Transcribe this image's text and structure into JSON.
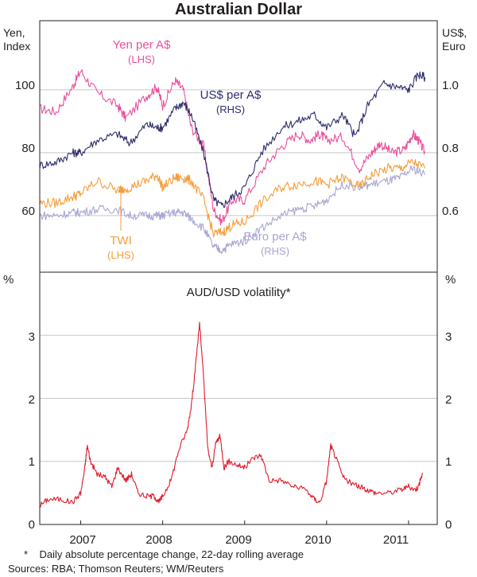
{
  "chart_data": [
    {
      "type": "line",
      "title": "Australian Dollar",
      "panel": "top",
      "x_range": [
        2006.5,
        2011.35
      ],
      "left_axis": {
        "label_line1": "Yen,",
        "label_line2": "Index",
        "ticks": [
          60,
          80,
          100
        ],
        "ylim": [
          42,
          122
        ]
      },
      "right_axis": {
        "label_line1": "US$,",
        "label_line2": "Euro",
        "ticks": [
          0.6,
          0.8,
          1.0
        ],
        "tick_labels": [
          "0.6",
          "0.8",
          "1.0"
        ],
        "ylim": [
          0.42,
          1.22
        ]
      },
      "series": [
        {
          "name": "Yen per A$",
          "axis_label": "(LHS)",
          "axis": "left",
          "color": "#e8509c",
          "x": [
            2006.5,
            2006.7,
            2006.9,
            2007.0,
            2007.2,
            2007.45,
            2007.55,
            2007.8,
            2007.93,
            2008.0,
            2008.15,
            2008.25,
            2008.35,
            2008.5,
            2008.62,
            2008.72,
            2008.85,
            2009.0,
            2009.25,
            2009.45,
            2009.65,
            2009.8,
            2009.92,
            2010.0,
            2010.2,
            2010.4,
            2010.55,
            2010.65,
            2010.8,
            2010.95,
            2011.05,
            2011.12,
            2011.2
          ],
          "values": [
            94,
            93,
            101,
            106,
            99,
            95,
            91,
            98,
            101,
            95,
            103,
            100,
            88,
            82,
            62,
            58,
            65,
            65,
            76,
            82,
            86,
            84,
            86,
            84,
            85,
            75,
            80,
            83,
            80,
            81,
            86,
            84,
            80
          ]
        },
        {
          "name": "US$ per A$",
          "axis_label": "(RHS)",
          "axis": "right",
          "color": "#2e2d6e",
          "x": [
            2006.5,
            2006.7,
            2006.9,
            2007.0,
            2007.2,
            2007.45,
            2007.6,
            2007.8,
            2007.93,
            2008.0,
            2008.15,
            2008.25,
            2008.35,
            2008.5,
            2008.62,
            2008.72,
            2008.85,
            2009.0,
            2009.2,
            2009.45,
            2009.65,
            2009.85,
            2010.0,
            2010.2,
            2010.35,
            2010.5,
            2010.7,
            2010.85,
            2011.0,
            2011.12,
            2011.2
          ],
          "values": [
            0.76,
            0.77,
            0.8,
            0.8,
            0.84,
            0.86,
            0.83,
            0.89,
            0.88,
            0.88,
            0.94,
            0.96,
            0.92,
            0.8,
            0.65,
            0.63,
            0.66,
            0.69,
            0.8,
            0.88,
            0.9,
            0.92,
            0.88,
            0.92,
            0.85,
            0.95,
            1.02,
            1.01,
            1.0,
            1.05,
            1.04
          ]
        },
        {
          "name": "TWI",
          "axis_label": "(LHS)",
          "axis": "left",
          "color": "#f59d3a",
          "x": [
            2006.5,
            2006.7,
            2006.9,
            2007.0,
            2007.2,
            2007.45,
            2007.6,
            2007.8,
            2007.93,
            2008.0,
            2008.15,
            2008.25,
            2008.35,
            2008.5,
            2008.62,
            2008.75,
            2008.85,
            2009.0,
            2009.2,
            2009.45,
            2009.65,
            2009.85,
            2010.0,
            2010.2,
            2010.4,
            2010.55,
            2010.75,
            2010.9,
            2011.05,
            2011.2
          ],
          "values": [
            64,
            64,
            66,
            67,
            71,
            68,
            69,
            71,
            73,
            69,
            72,
            72,
            71,
            65,
            54,
            55,
            57,
            58,
            64,
            69,
            70,
            71,
            70,
            72,
            69,
            73,
            75,
            75,
            77,
            75
          ]
        },
        {
          "name": "Euro per A$",
          "axis_label": "(RHS)",
          "axis": "right",
          "color": "#a8a6d2",
          "x": [
            2006.5,
            2006.7,
            2006.9,
            2007.0,
            2007.2,
            2007.45,
            2007.6,
            2007.8,
            2007.93,
            2008.0,
            2008.15,
            2008.25,
            2008.35,
            2008.5,
            2008.62,
            2008.72,
            2008.85,
            2009.0,
            2009.2,
            2009.45,
            2009.65,
            2009.85,
            2010.0,
            2010.2,
            2010.4,
            2010.55,
            2010.75,
            2010.9,
            2011.05,
            2011.2
          ],
          "values": [
            0.6,
            0.6,
            0.61,
            0.61,
            0.62,
            0.62,
            0.6,
            0.6,
            0.6,
            0.6,
            0.61,
            0.61,
            0.59,
            0.56,
            0.5,
            0.49,
            0.51,
            0.52,
            0.56,
            0.6,
            0.62,
            0.63,
            0.65,
            0.7,
            0.69,
            0.7,
            0.71,
            0.72,
            0.75,
            0.73
          ]
        }
      ],
      "annotations": []
    },
    {
      "type": "line",
      "title": "AUD/USD volatility*",
      "panel": "bottom",
      "x_range": [
        2006.5,
        2011.35
      ],
      "ylabel_left": "%",
      "ylabel_right": "%",
      "ylim": [
        0,
        4
      ],
      "ticks": [
        0,
        1,
        2,
        3
      ],
      "series": [
        {
          "name": "AUD/USD volatility",
          "color": "#e01a2a",
          "x": [
            2006.5,
            2006.6,
            2006.75,
            2006.9,
            2007.0,
            2007.05,
            2007.08,
            2007.12,
            2007.2,
            2007.3,
            2007.38,
            2007.45,
            2007.55,
            2007.62,
            2007.7,
            2007.8,
            2007.9,
            2007.95,
            2008.0,
            2008.1,
            2008.2,
            2008.3,
            2008.35,
            2008.4,
            2008.45,
            2008.5,
            2008.55,
            2008.6,
            2008.65,
            2008.7,
            2008.75,
            2008.8,
            2008.9,
            2009.0,
            2009.1,
            2009.2,
            2009.3,
            2009.45,
            2009.6,
            2009.75,
            2009.85,
            2009.92,
            2010.0,
            2010.05,
            2010.1,
            2010.2,
            2010.3,
            2010.4,
            2010.5,
            2010.6,
            2010.75,
            2010.9,
            2011.0,
            2011.08,
            2011.12,
            2011.17
          ],
          "values": [
            0.3,
            0.4,
            0.4,
            0.35,
            0.5,
            0.9,
            1.25,
            1.0,
            0.8,
            0.75,
            0.6,
            0.9,
            0.7,
            0.8,
            0.5,
            0.45,
            0.45,
            0.35,
            0.45,
            0.7,
            1.2,
            1.5,
            1.9,
            2.5,
            3.2,
            2.3,
            1.2,
            0.9,
            1.3,
            1.4,
            0.9,
            1.0,
            0.95,
            0.9,
            1.05,
            1.1,
            0.7,
            0.7,
            0.6,
            0.55,
            0.4,
            0.35,
            0.7,
            1.25,
            1.1,
            0.75,
            0.65,
            0.6,
            0.55,
            0.5,
            0.5,
            0.55,
            0.6,
            0.55,
            0.6,
            0.82
          ]
        }
      ]
    }
  ],
  "labels": {
    "title": "Australian Dollar",
    "yen_left1": "Yen,",
    "yen_left2": "Index",
    "usd_right1": "US$,",
    "usd_right2": "Euro",
    "yen_series": "Yen per A$",
    "yen_axis": "(LHS)",
    "usd_series": "US$ per A$",
    "usd_axis": "(RHS)",
    "twi_series": "TWI",
    "twi_axis": "(LHS)",
    "euro_series": "Euro per A$",
    "euro_axis": "(RHS)",
    "pct_left": "%",
    "pct_right": "%",
    "vol_title": "AUD/USD volatility*",
    "x_ticks": [
      "2007",
      "2008",
      "2009",
      "2010",
      "2011"
    ],
    "footnote": "*    Daily absolute percentage change, 22-day rolling average",
    "sources": "Sources: RBA; Thomson Reuters; WM/Reuters"
  },
  "left_ticks_top": [
    "60",
    "80",
    "100"
  ],
  "right_ticks_top": [
    "0.6",
    "0.8",
    "1.0"
  ],
  "left_ticks_bottom": [
    "0",
    "1",
    "2",
    "3"
  ],
  "right_ticks_bottom": [
    "0",
    "1",
    "2",
    "3"
  ],
  "colors": {
    "yen": "#e8509c",
    "usd": "#2e2d6e",
    "twi": "#f59d3a",
    "euro": "#a8a6d2",
    "vol": "#e01a2a",
    "grid": "#c8c8c8",
    "frame": "#231f20"
  }
}
